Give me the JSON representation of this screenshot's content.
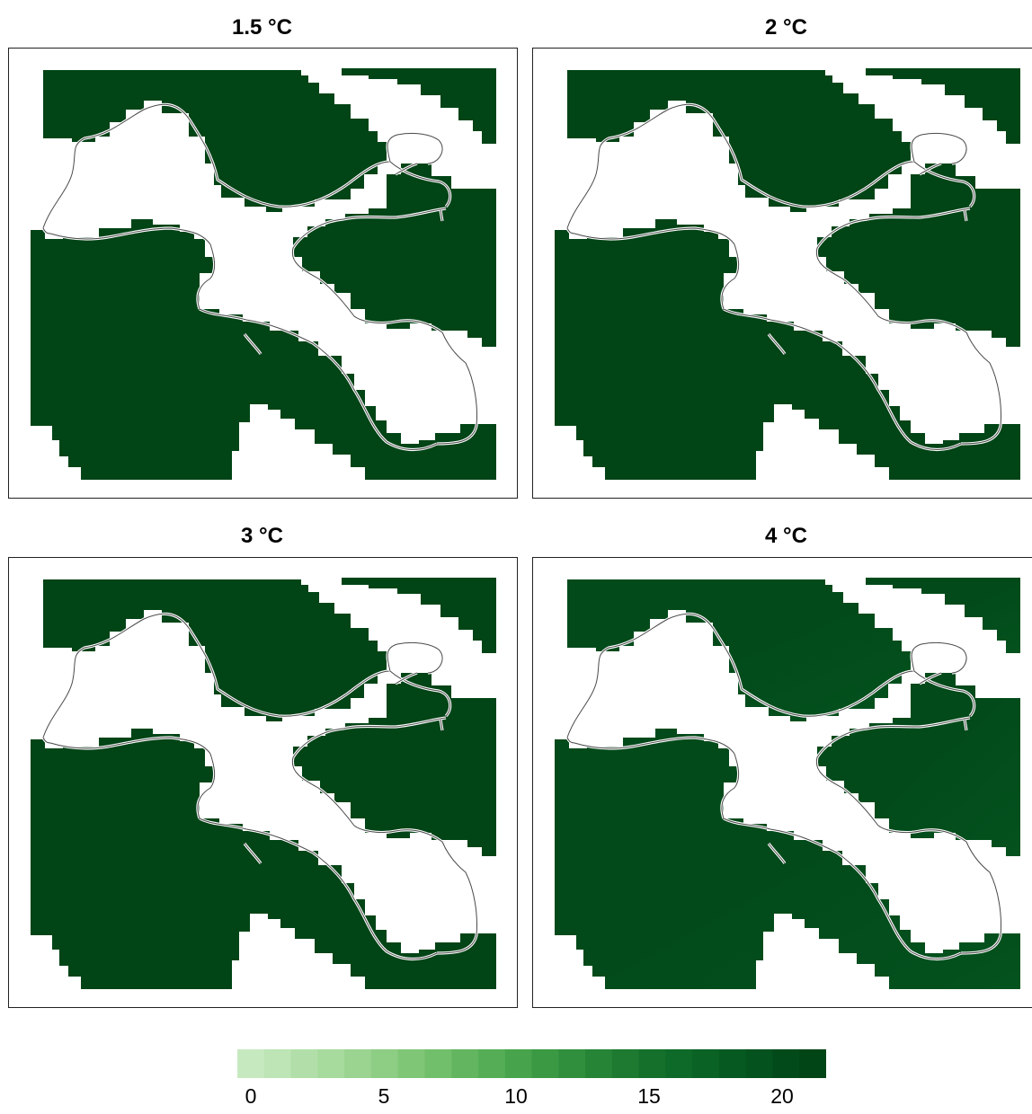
{
  "panels": [
    {
      "title": "1.5 °C",
      "base": 21.5,
      "band_shift": 0.0
    },
    {
      "title": "2 °C",
      "base": 21.2,
      "band_shift": 0.0
    },
    {
      "title": "3 °C",
      "base": 21.0,
      "band_shift": 0.0
    },
    {
      "title": "4 °C",
      "base": 20.6,
      "band_shift": 1.0
    }
  ],
  "colorbar": {
    "min": 0,
    "max": 22,
    "steps": 22,
    "ticks": [
      "0",
      "5",
      "10",
      "15",
      "20"
    ],
    "colors": [
      "#c7e9c0",
      "#bde5b5",
      "#b2dfa9",
      "#a7da9d",
      "#9bd391",
      "#8ecd84",
      "#80c677",
      "#72bf6b",
      "#63b65f",
      "#55ae55",
      "#47a44c",
      "#3b9944",
      "#308f3d",
      "#268436",
      "#1d7a30",
      "#15702b",
      "#0e6a28",
      "#0a6225",
      "#065a21",
      "#04521e",
      "#024a1a",
      "#014416"
    ]
  }
}
